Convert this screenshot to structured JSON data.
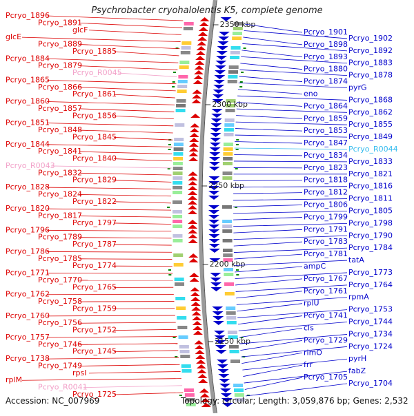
{
  "title": "Psychrobacter cryohalolentis K5, complete genome",
  "accession_text": "Accession: NC_007969",
  "summary_text": "Topology: circular; Length: 3,059,876 bp; Genes: 2,532",
  "colors": {
    "forward": "#dd0000",
    "reverse": "#0000cc",
    "rna_forward": "#f2a0c8",
    "rna_reverse": "#33bbee",
    "tick": "#008800"
  },
  "kbp_ticks": [
    "2350 kbp",
    "2300 kbp",
    "2250 kbp",
    "2200 kbp",
    "2150 kbp"
  ],
  "left_labels": [
    "Pcryo_1896",
    "Pcryo_1891",
    "glcF",
    "glcE",
    "Pcryo_1889",
    "Pcryo_1885",
    "Pcryo_1884",
    "Pcryo_1879",
    "Pcryo_R0045",
    "Pcryo_1865",
    "Pcryo_1866",
    "Pcryo_1861",
    "Pcryo_1860",
    "Pcryo_1857",
    "Pcryo_1856",
    "Pcryo_1851",
    "Pcryo_1848",
    "Pcryo_1845",
    "Pcryo_1844",
    "Pcryo_1841",
    "Pcryo_1840",
    "Pcryo_R0043",
    "Pcryo_1832",
    "Pcryo_1829",
    "Pcryo_1828",
    "Pcryo_1824",
    "Pcryo_1822",
    "Pcryo_1820",
    "Pcryo_1817",
    "Pcryo_1797",
    "Pcryo_1796",
    "Pcryo_1789",
    "Pcryo_1787",
    "Pcryo_1786",
    "Pcryo_1785",
    "Pcryo_1774",
    "Pcryo_1771",
    "Pcryo_1770",
    "Pcryo_1765",
    "Pcryo_1762",
    "Pcryo_1758",
    "Pcryo_1759",
    "Pcryo_1760",
    "Pcryo_1756",
    "Pcryo_1752",
    "Pcryo_1757",
    "Pcryo_1746",
    "Pcryo_1745",
    "Pcryo_1738",
    "Pcryo_1749",
    "rpsI",
    "rplM",
    "Pcryo_R0041",
    "Pcryo_1725"
  ],
  "right_labels": [
    "Pcryo_1901",
    "Pcryo_1902",
    "Pcryo_1898",
    "Pcryo_1892",
    "Pcryo_1893",
    "Pcryo_1883",
    "Pcryo_1880",
    "Pcryo_1878",
    "Pcryo_1874",
    "pyrG",
    "eno",
    "Pcryo_1868",
    "Pcryo_1864",
    "Pcryo_1862",
    "Pcryo_1859",
    "Pcryo_1855",
    "Pcryo_1853",
    "Pcryo_1849",
    "Pcryo_1847",
    "Pcryo_R0044",
    "Pcryo_1834",
    "Pcryo_1833",
    "Pcryo_1823",
    "Pcryo_1821",
    "Pcryo_1818",
    "Pcryo_1816",
    "Pcryo_1812",
    "Pcryo_1811",
    "Pcryo_1806",
    "Pcryo_1805",
    "Pcryo_1799",
    "Pcryo_1798",
    "Pcryo_1791",
    "Pcryo_1790",
    "Pcryo_1783",
    "Pcryo_1784",
    "Pcryo_1781",
    "tatA",
    "ampC",
    "Pcryo_1773",
    "Pcryo_1767",
    "Pcryo_1764",
    "Pcryo_1761",
    "rpmA",
    "rplU",
    "Pcryo_1753",
    "Pcryo_1741",
    "Pcryo_1744",
    "cls",
    "Pcryo_1734",
    "Pcryo_1729",
    "Pcryo_1724",
    "rimO",
    "pyrH",
    "frr",
    "fabZ",
    "Pcryo_1705",
    "Pcryo_1704"
  ]
}
